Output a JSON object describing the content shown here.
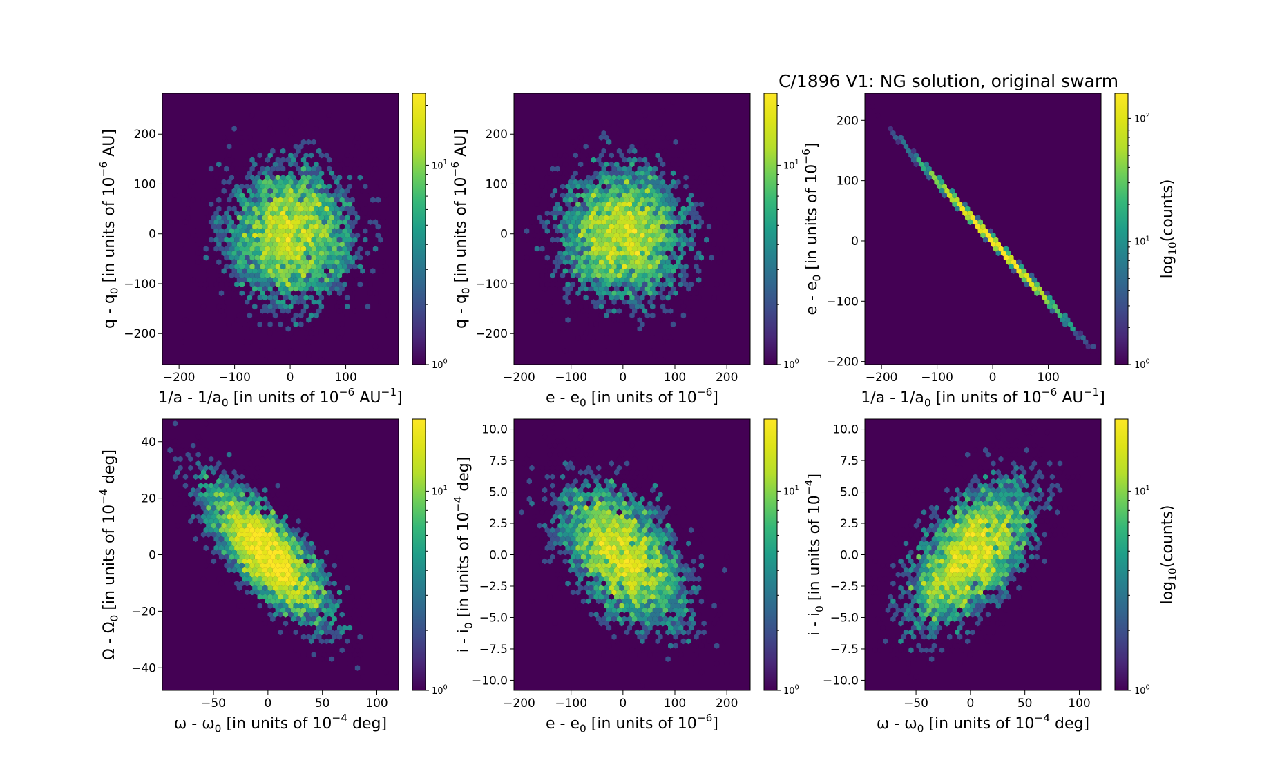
{
  "figure": {
    "title": "C/1896 V1:  NG solution, original swarm"
  },
  "chart_data": [
    {
      "type": "heatmap",
      "style": "hexbin",
      "xlabel": "1/a - 1/a_0 [in units of 10^-6 AU^-1]",
      "ylabel": "q - q_0 [in units of 10^-6 AU]",
      "xlim": [
        -230,
        195
      ],
      "ylim": [
        -262,
        282
      ],
      "xticks": [
        -200,
        -100,
        0,
        100
      ],
      "yticks": [
        -200,
        -100,
        0,
        100,
        200
      ],
      "xtick_labels": [
        "−200",
        "−100",
        "0",
        "100"
      ],
      "ytick_labels": [
        "−200",
        "−100",
        "0",
        "100",
        "200"
      ],
      "distribution": {
        "mean_x": 0,
        "mean_y": 0,
        "sd_x": 62,
        "sd_y": 72,
        "correlation": 0.0,
        "points": 5000
      },
      "colorbar": {
        "scale": "log",
        "range": [
          1,
          23
        ],
        "ticks": [
          1,
          10
        ],
        "tick_labels": [
          "10^0",
          "10^1"
        ],
        "label": ""
      }
    },
    {
      "type": "heatmap",
      "style": "hexbin",
      "xlabel": "e - e_0 [in units of 10^-6]",
      "ylabel": "q - q_0 [in units of 10^-6 AU]",
      "xlim": [
        -210,
        245
      ],
      "ylim": [
        -262,
        282
      ],
      "xticks": [
        -200,
        -100,
        0,
        100,
        200
      ],
      "yticks": [
        -200,
        -100,
        0,
        100,
        200
      ],
      "xtick_labels": [
        "−200",
        "−100",
        "0",
        "100",
        "200"
      ],
      "ytick_labels": [
        "−200",
        "−100",
        "0",
        "100",
        "200"
      ],
      "distribution": {
        "mean_x": 0,
        "mean_y": 0,
        "sd_x": 65,
        "sd_y": 72,
        "correlation": 0.0,
        "points": 5000
      },
      "colorbar": {
        "scale": "log",
        "range": [
          1,
          23
        ],
        "ticks": [
          1,
          10
        ],
        "tick_labels": [
          "10^0",
          "10^1"
        ],
        "label": ""
      }
    },
    {
      "type": "heatmap",
      "style": "hexbin",
      "title": "C/1896 V1:  NG solution, original swarm",
      "xlabel": "1/a - 1/a_0 [in units of 10^-6 AU^-1]",
      "ylabel": "e - e_0 [in units of 10^-6]",
      "xlim": [
        -230,
        195
      ],
      "ylim": [
        -205,
        245
      ],
      "xticks": [
        -200,
        -100,
        0,
        100
      ],
      "yticks": [
        -200,
        -100,
        0,
        100,
        200
      ],
      "xtick_labels": [
        "−200",
        "−100",
        "0",
        "100"
      ],
      "ytick_labels": [
        "−200",
        "−100",
        "0",
        "100",
        "200"
      ],
      "distribution": {
        "mean_x": 0,
        "mean_y": 0,
        "sd_x": 60,
        "sd_y": 60,
        "correlation": -0.999,
        "points": 5000
      },
      "colorbar": {
        "scale": "log",
        "range": [
          1,
          160
        ],
        "ticks": [
          1,
          10,
          100
        ],
        "tick_labels": [
          "10^0",
          "10^1",
          "10^2"
        ],
        "label": "log_10(counts)"
      }
    },
    {
      "type": "heatmap",
      "style": "hexbin",
      "xlabel": "ω - ω_0 [in units of 10^-4 deg]",
      "ylabel": "Ω - Ω_0 [in units of 10^-4 deg]",
      "xlim": [
        -97,
        120
      ],
      "ylim": [
        -48,
        48
      ],
      "xticks": [
        -50,
        0,
        50,
        100
      ],
      "yticks": [
        -40,
        -20,
        0,
        20,
        40
      ],
      "xtick_labels": [
        "−50",
        "0",
        "50",
        "100"
      ],
      "ytick_labels": [
        "−40",
        "−20",
        "0",
        "20",
        "40"
      ],
      "distribution": {
        "mean_x": 0,
        "mean_y": 0,
        "sd_x": 30,
        "sd_y": 13,
        "correlation": -0.75,
        "points": 5000
      },
      "colorbar": {
        "scale": "log",
        "range": [
          1,
          23
        ],
        "ticks": [
          1,
          10
        ],
        "tick_labels": [
          "10^0",
          "10^1"
        ],
        "label": ""
      }
    },
    {
      "type": "heatmap",
      "style": "hexbin",
      "xlabel": "e - e_0 [in units of 10^-6]",
      "ylabel": "i - i_0 [in units of 10^-4 deg]",
      "xlim": [
        -210,
        245
      ],
      "ylim": [
        -10.8,
        10.8
      ],
      "xticks": [
        -200,
        -100,
        0,
        100,
        200
      ],
      "yticks": [
        -10,
        -7.5,
        -5,
        -2.5,
        0,
        2.5,
        5,
        7.5,
        10
      ],
      "xtick_labels": [
        "−200",
        "−100",
        "0",
        "100",
        "200"
      ],
      "ytick_labels": [
        "−10.0",
        "−7.5",
        "−5.0",
        "−2.5",
        "0.0",
        "2.5",
        "5.0",
        "7.5",
        "10.0"
      ],
      "distribution": {
        "mean_x": 0,
        "mean_y": 0,
        "sd_x": 65,
        "sd_y": 3,
        "correlation": -0.5,
        "points": 5000
      },
      "colorbar": {
        "scale": "log",
        "range": [
          1,
          23
        ],
        "ticks": [
          1,
          10
        ],
        "tick_labels": [
          "10^0",
          "10^1"
        ],
        "label": ""
      }
    },
    {
      "type": "heatmap",
      "style": "hexbin",
      "xlabel": "ω - ω_0 [in units of 10^-4 deg]",
      "ylabel": "i - i_0 [in units of 10^-4]",
      "xlim": [
        -97,
        120
      ],
      "ylim": [
        -10.8,
        10.8
      ],
      "xticks": [
        -50,
        0,
        50,
        100
      ],
      "yticks": [
        -10,
        -7.5,
        -5,
        -2.5,
        0,
        2.5,
        5,
        7.5,
        10
      ],
      "xtick_labels": [
        "−50",
        "0",
        "50",
        "100"
      ],
      "ytick_labels": [
        "−10.0",
        "−7.5",
        "−5.0",
        "−2.5",
        "0.0",
        "2.5",
        "5.0",
        "7.5",
        "10.0"
      ],
      "distribution": {
        "mean_x": 0,
        "mean_y": 0,
        "sd_x": 30,
        "sd_y": 3,
        "correlation": 0.55,
        "points": 5000
      },
      "colorbar": {
        "scale": "log",
        "range": [
          1,
          23
        ],
        "ticks": [
          1,
          10
        ],
        "tick_labels": [
          "10^0",
          "10^1"
        ],
        "label": "log_10(counts)"
      }
    }
  ]
}
